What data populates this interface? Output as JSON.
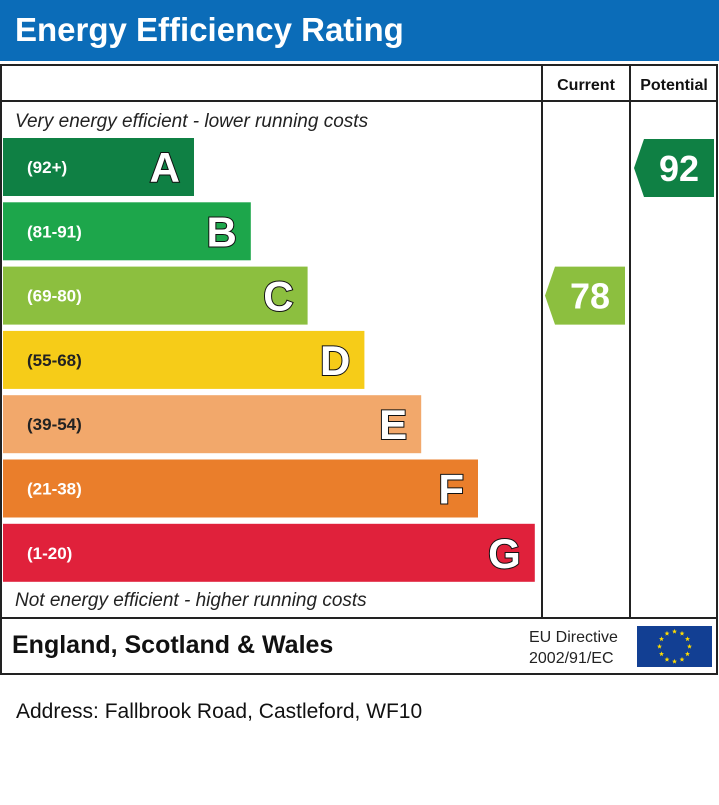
{
  "header": {
    "title": "Energy Efficiency Rating"
  },
  "chart_data": {
    "type": "bar",
    "columns": {
      "current": "Current",
      "potential": "Potential"
    },
    "top_caption": "Very energy efficient - lower running costs",
    "bottom_caption": "Not energy efficient - higher running costs",
    "bands": [
      {
        "range": "(92+)",
        "letter": "A",
        "color": "#0f8044"
      },
      {
        "range": "(81-91)",
        "letter": "B",
        "color": "#1da64b"
      },
      {
        "range": "(69-80)",
        "letter": "C",
        "color": "#8cbf3f"
      },
      {
        "range": "(55-68)",
        "letter": "D",
        "color": "#f6cc18"
      },
      {
        "range": "(39-54)",
        "letter": "E",
        "color": "#f2a86b"
      },
      {
        "range": "(21-38)",
        "letter": "F",
        "color": "#ea7e2b"
      },
      {
        "range": "(1-20)",
        "letter": "G",
        "color": "#e0213b"
      }
    ],
    "current": {
      "value": 78,
      "band": "C",
      "color": "#8cbf3f"
    },
    "potential": {
      "value": 92,
      "band": "A",
      "color": "#0f8044"
    }
  },
  "footer": {
    "region": "England, Scotland & Wales",
    "directive_line1": "EU Directive",
    "directive_line2": "2002/91/EC",
    "flag_color": "#123f93",
    "star_color": "#ffdd00"
  },
  "address": "Address: Fallbrook Road, Castleford, WF10"
}
